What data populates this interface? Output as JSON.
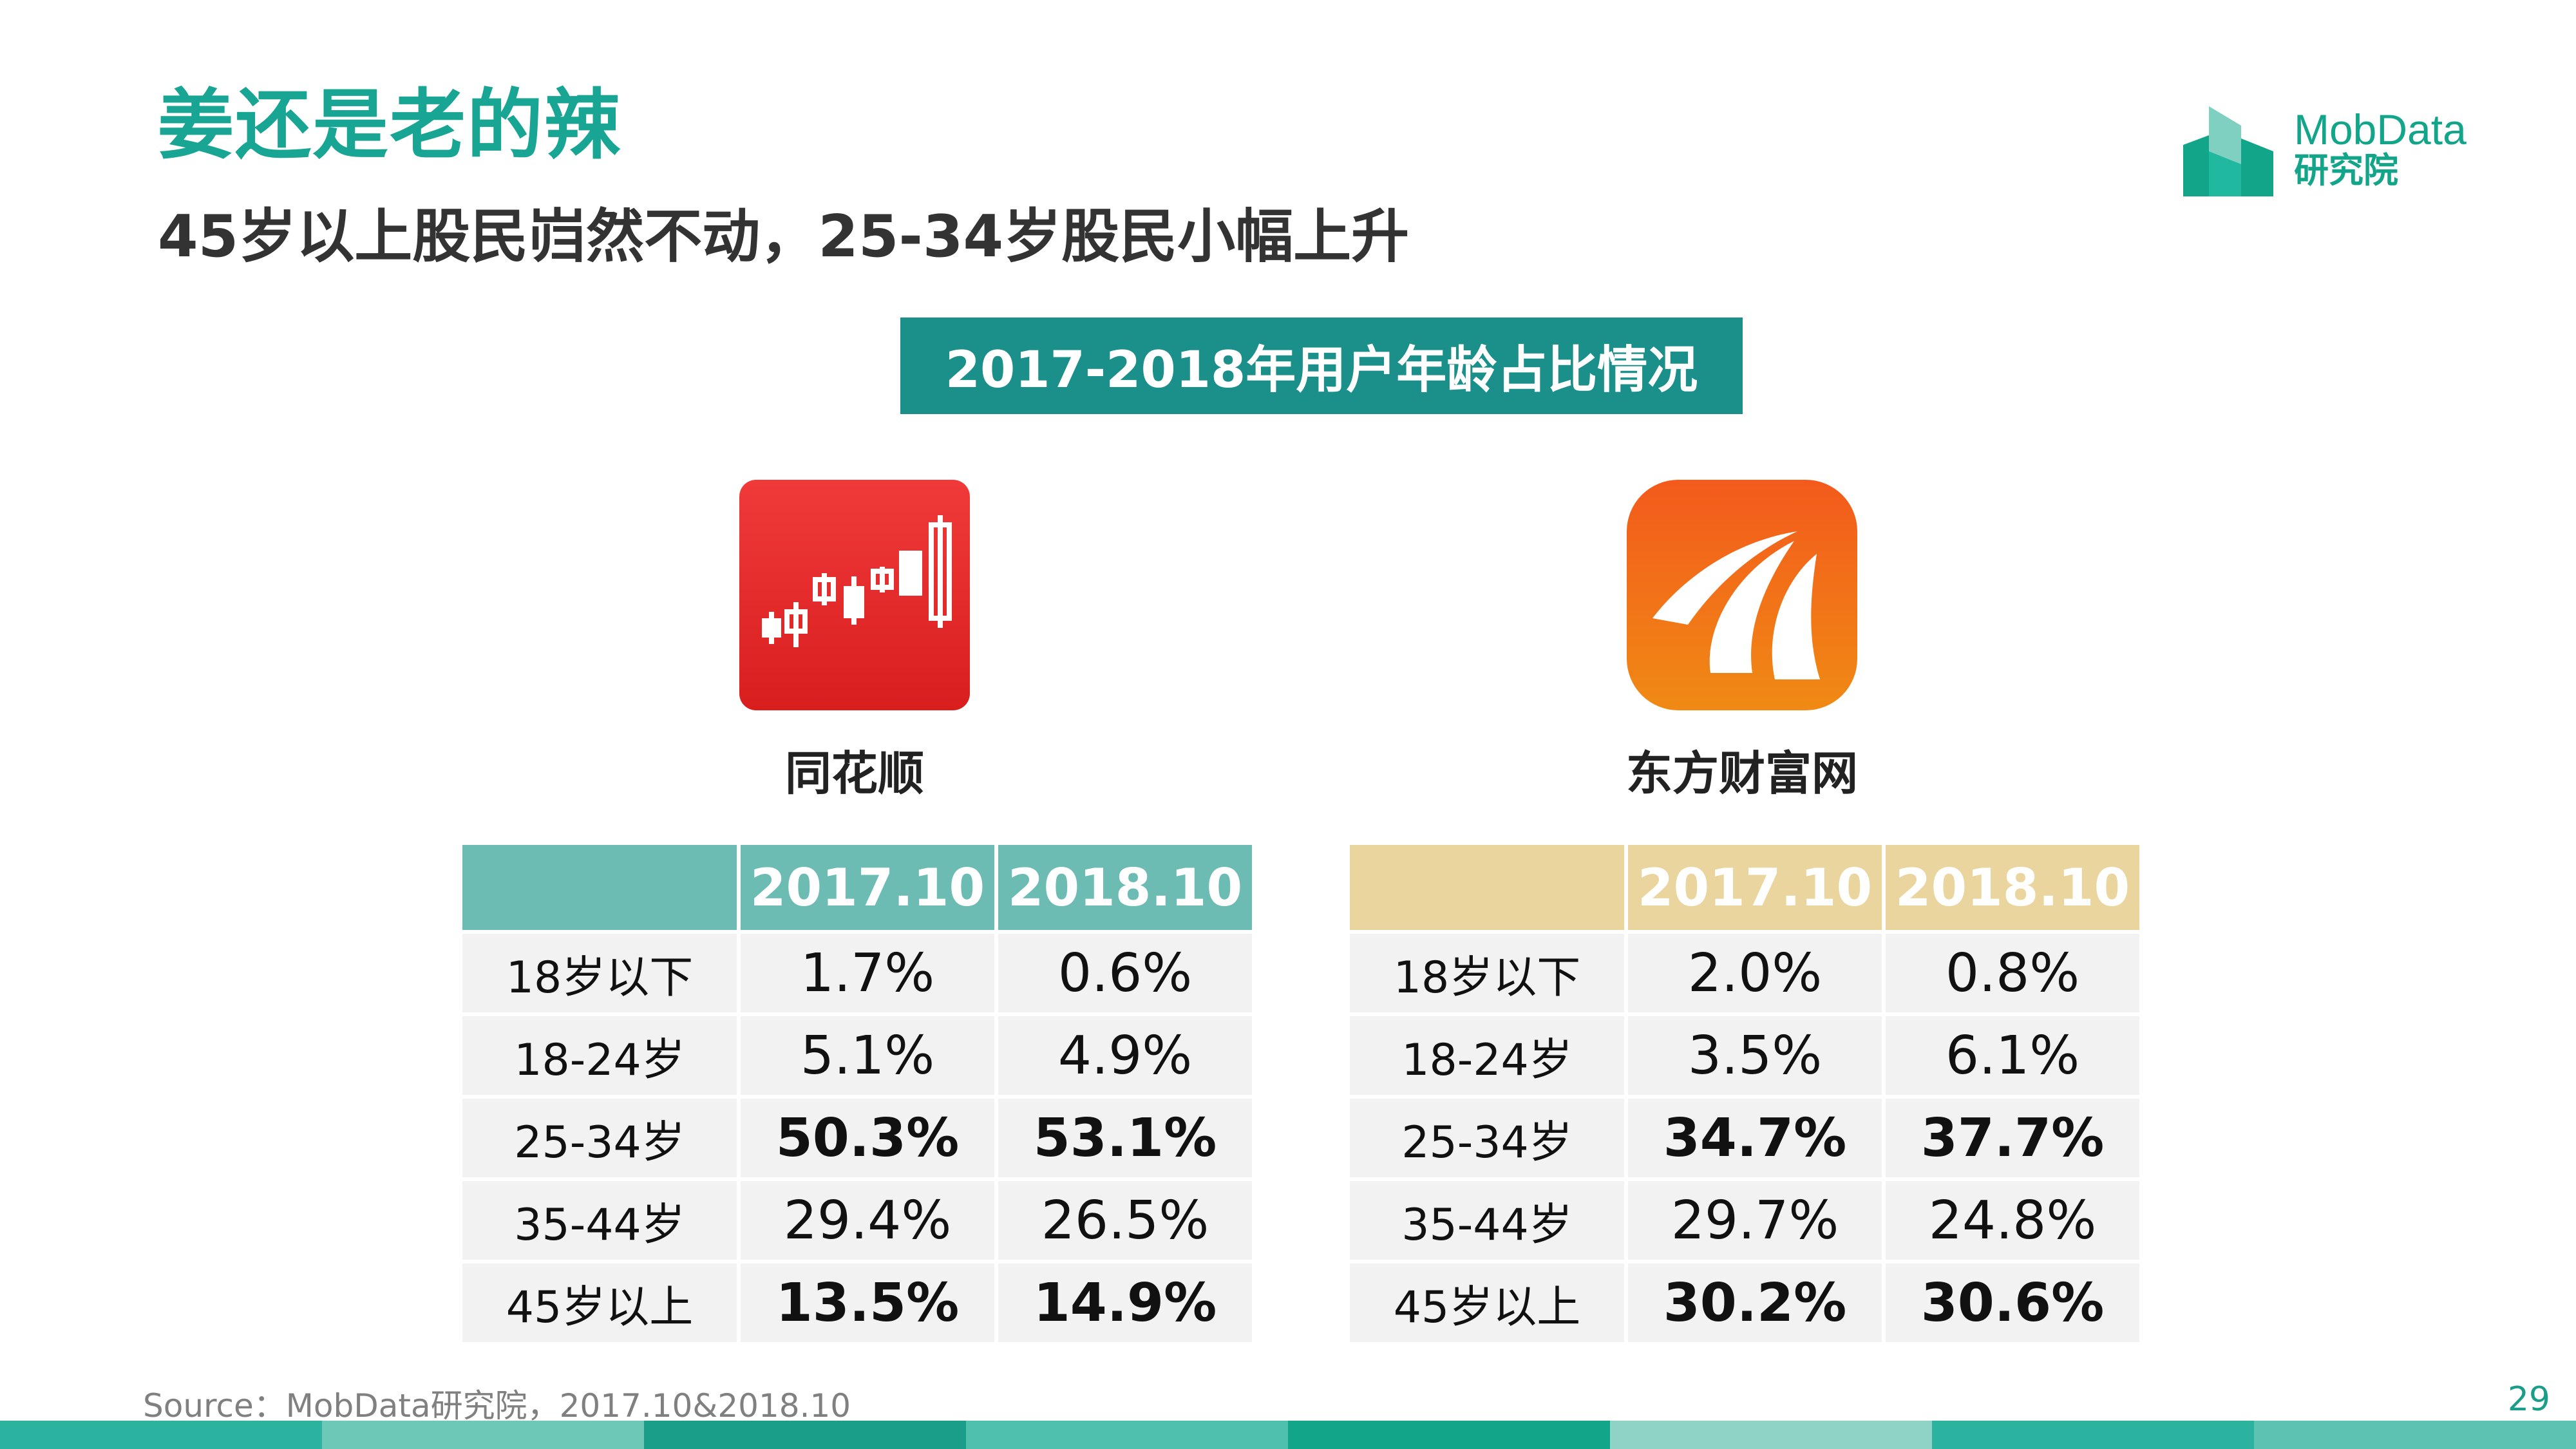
{
  "page": {
    "title": "姜还是老的辣",
    "subtitle": "45岁以上股民岿然不动，25-34岁股民小幅上升",
    "banner": "2017-2018年用户年龄占比情况",
    "source": "Source：MobData研究院，2017.10&2018.10",
    "page_number": "29"
  },
  "logo": {
    "name": "MobData",
    "sub": "研究院",
    "mark_icon": "mobdata-buildings-icon"
  },
  "apps": [
    {
      "name": "同花顺",
      "icon": "candlestick-chart-icon",
      "header_color": "#6cbcb4",
      "columns": [
        "",
        "2017.10",
        "2018.10"
      ],
      "rows": [
        {
          "age": "18岁以下",
          "v2017": "1.7%",
          "v2018": "0.6%",
          "bold": false
        },
        {
          "age": "18-24岁",
          "v2017": "5.1%",
          "v2018": "4.9%",
          "bold": false
        },
        {
          "age": "25-34岁",
          "v2017": "50.3%",
          "v2018": "53.1%",
          "bold": true
        },
        {
          "age": "35-44岁",
          "v2017": "29.4%",
          "v2018": "26.5%",
          "bold": false
        },
        {
          "age": "45岁以上",
          "v2017": "13.5%",
          "v2018": "14.9%",
          "bold": true
        }
      ]
    },
    {
      "name": "东方财富网",
      "icon": "eastmoney-swoosh-icon",
      "header_color": "#ebd59f",
      "columns": [
        "",
        "2017.10",
        "2018.10"
      ],
      "rows": [
        {
          "age": "18岁以下",
          "v2017": "2.0%",
          "v2018": "0.8%",
          "bold": false
        },
        {
          "age": "18-24岁",
          "v2017": "3.5%",
          "v2018": "6.1%",
          "bold": false
        },
        {
          "age": "25-34岁",
          "v2017": "34.7%",
          "v2018": "37.7%",
          "bold": true
        },
        {
          "age": "35-44岁",
          "v2017": "29.7%",
          "v2018": "24.8%",
          "bold": false
        },
        {
          "age": "45岁以上",
          "v2017": "30.2%",
          "v2018": "30.6%",
          "bold": true
        }
      ]
    }
  ],
  "colors": {
    "title": "#19a593",
    "banner_bg": "#1b8f8a",
    "footer": [
      "#2bb3a0",
      "#6dc8b8",
      "#1a9e8a",
      "#4fbfae",
      "#13a58a",
      "#8fd3c6",
      "#2bb3a0",
      "#5cc2b2"
    ]
  }
}
